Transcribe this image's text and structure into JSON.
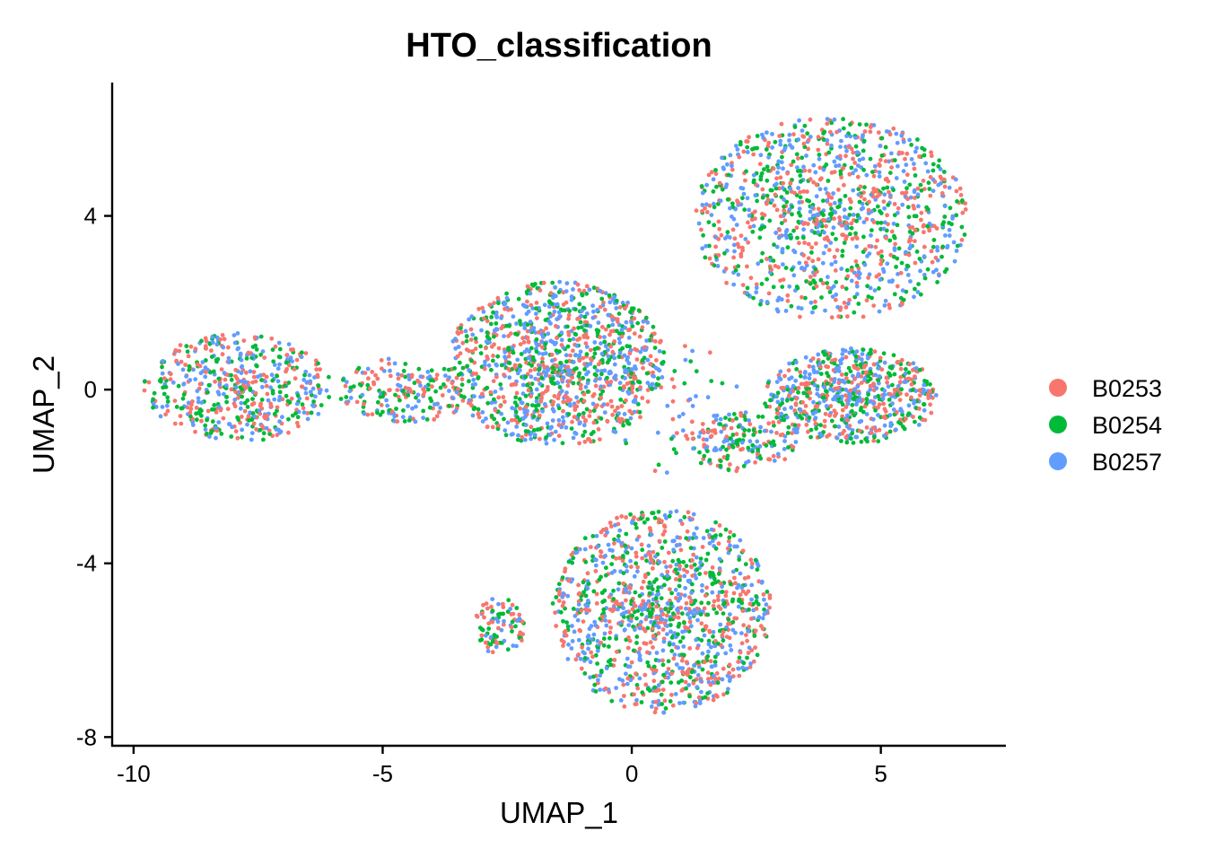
{
  "chart_data": {
    "type": "scatter",
    "title": "HTO_classification",
    "xlabel": "UMAP_1",
    "ylabel": "UMAP_2",
    "xlim": [
      -10.43,
      7.51
    ],
    "ylim": [
      -8.2,
      7.07
    ],
    "xticks": [
      -10,
      -5,
      0,
      5
    ],
    "xtick_labels": [
      "-10",
      "-5",
      "0",
      "5"
    ],
    "yticks": [
      -8,
      -4,
      0,
      4
    ],
    "ytick_labels": [
      "-8",
      "-4",
      "0",
      "4"
    ],
    "grid": false,
    "legend": {
      "placement": "right",
      "entries": [
        {
          "name": "B0253",
          "color": "#F8766D"
        },
        {
          "name": "B0254",
          "color": "#00BA38"
        },
        {
          "name": "B0257",
          "color": "#619CFF"
        }
      ]
    },
    "note": "Points are distributed across clusters given in data units (center, radii, count); series assigned roughly evenly.",
    "clusters": [
      {
        "name": "left-blob",
        "cx": -7.9,
        "cy": 0.05,
        "rx": 1.9,
        "ry": 1.25,
        "n": 520
      },
      {
        "name": "bridge",
        "cx": -4.5,
        "cy": 0.0,
        "rx": 1.4,
        "ry": 0.75,
        "n": 200
      },
      {
        "name": "center-blob",
        "cx": -1.5,
        "cy": 0.6,
        "rx": 2.2,
        "ry": 1.9,
        "n": 1100
      },
      {
        "name": "top-right",
        "cx": 4.0,
        "cy": 3.95,
        "rx": 2.75,
        "ry": 2.35,
        "n": 1100
      },
      {
        "name": "right-middle",
        "cx": 4.4,
        "cy": -0.15,
        "rx": 1.75,
        "ry": 1.1,
        "n": 650
      },
      {
        "name": "right-tail",
        "cx": 2.2,
        "cy": -1.2,
        "rx": 1.1,
        "ry": 0.7,
        "n": 160
      },
      {
        "name": "bottom",
        "cx": 0.6,
        "cy": -5.1,
        "rx": 2.2,
        "ry": 2.35,
        "n": 1150
      },
      {
        "name": "bottom-small",
        "cx": -2.65,
        "cy": -5.45,
        "rx": 0.5,
        "ry": 0.7,
        "n": 90
      },
      {
        "name": "scatter-gap",
        "cx": 1.0,
        "cy": -0.5,
        "rx": 1.5,
        "ry": 1.6,
        "n": 70
      }
    ]
  }
}
